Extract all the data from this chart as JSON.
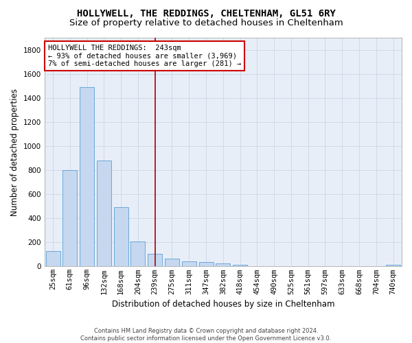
{
  "title": "HOLLYWELL, THE REDDINGS, CHELTENHAM, GL51 6RY",
  "subtitle": "Size of property relative to detached houses in Cheltenham",
  "xlabel": "Distribution of detached houses by size in Cheltenham",
  "ylabel": "Number of detached properties",
  "categories": [
    "25sqm",
    "61sqm",
    "96sqm",
    "132sqm",
    "168sqm",
    "204sqm",
    "239sqm",
    "275sqm",
    "311sqm",
    "347sqm",
    "382sqm",
    "418sqm",
    "454sqm",
    "490sqm",
    "525sqm",
    "561sqm",
    "597sqm",
    "633sqm",
    "668sqm",
    "704sqm",
    "740sqm"
  ],
  "values": [
    125,
    800,
    1490,
    880,
    490,
    205,
    105,
    65,
    40,
    35,
    27,
    15,
    0,
    0,
    0,
    0,
    0,
    0,
    0,
    0,
    15
  ],
  "bar_color": "#c5d8ef",
  "bar_edge_color": "#5a9fd4",
  "vline_x_index": 6,
  "vline_color": "#aa0000",
  "annotation_line1": "HOLLYWELL THE REDDINGS:  243sqm",
  "annotation_line2": "← 93% of detached houses are smaller (3,969)",
  "annotation_line3": "7% of semi-detached houses are larger (281) →",
  "annotation_box_color": "#ffffff",
  "annotation_box_edge": "#cc0000",
  "ylim": [
    0,
    1900
  ],
  "yticks": [
    0,
    200,
    400,
    600,
    800,
    1000,
    1200,
    1400,
    1600,
    1800
  ],
  "grid_color": "#d0d8e8",
  "background_color": "#e8eef8",
  "footer_text": "Contains HM Land Registry data © Crown copyright and database right 2024.\nContains public sector information licensed under the Open Government Licence v3.0.",
  "title_fontsize": 10,
  "subtitle_fontsize": 9.5,
  "xlabel_fontsize": 8.5,
  "ylabel_fontsize": 8.5,
  "tick_fontsize": 7.5,
  "annotation_fontsize": 7.5,
  "footer_fontsize": 6
}
